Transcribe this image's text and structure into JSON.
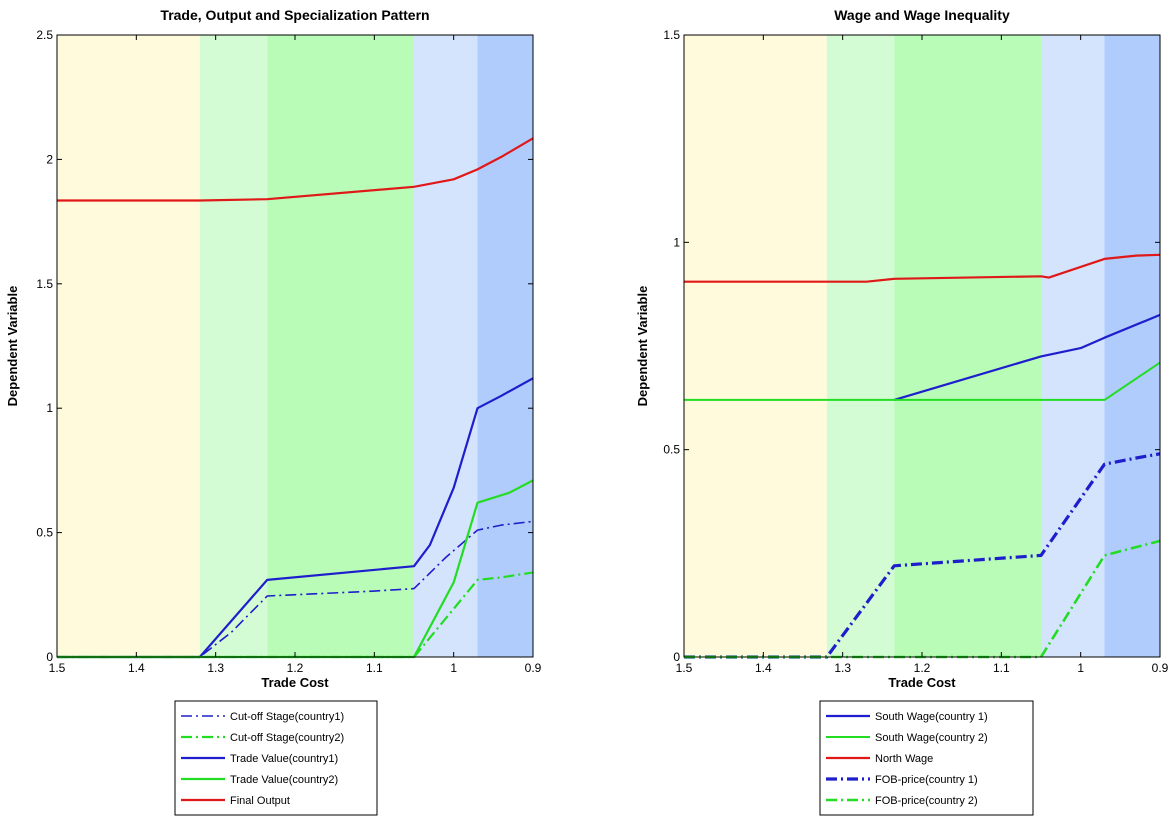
{
  "chart_data": [
    {
      "type": "line",
      "title": "Trade, Output and Specialization Pattern",
      "xlabel": "Trade Cost",
      "ylabel": "Dependent Variable",
      "xlim": [
        1.5,
        0.9
      ],
      "x_reversed": true,
      "ylim": [
        0,
        2.5
      ],
      "xticks": [
        1.5,
        1.4,
        1.3,
        1.2,
        1.1,
        1,
        0.9
      ],
      "xtick_labels": [
        "1.5",
        "1.4",
        "1.3",
        "1.2",
        "1.1",
        "1",
        "0.9"
      ],
      "yticks": [
        0,
        0.5,
        1,
        1.5,
        2,
        2.5
      ],
      "ytick_labels": [
        "0",
        "0.5",
        "1",
        "1.5",
        "2",
        "2.5"
      ],
      "grid": false,
      "legend_position": "below",
      "regions": [
        {
          "from": 1.5,
          "to": 1.32,
          "color": "#fffadc"
        },
        {
          "from": 1.32,
          "to": 1.235,
          "color": "#d4fcd4"
        },
        {
          "from": 1.235,
          "to": 1.05,
          "color": "#b8fcb8"
        },
        {
          "from": 1.05,
          "to": 0.97,
          "color": "#d4e4fc"
        },
        {
          "from": 0.97,
          "to": 0.9,
          "color": "#b0ccfc"
        }
      ],
      "series": [
        {
          "name": "Cut-off Stage(country1)",
          "color": "#1e1ecc",
          "style": "dashdot",
          "width": 1.6,
          "points": [
            [
              1.5,
              0
            ],
            [
              1.32,
              0
            ],
            [
              1.28,
              0.1
            ],
            [
              1.235,
              0.245
            ],
            [
              1.1,
              0.265
            ],
            [
              1.05,
              0.275
            ],
            [
              1.01,
              0.4
            ],
            [
              0.97,
              0.51
            ],
            [
              0.94,
              0.53
            ],
            [
              0.9,
              0.545
            ]
          ]
        },
        {
          "name": "Cut-off Stage(country2)",
          "color": "#22dd22",
          "style": "dashdot",
          "width": 2.2,
          "points": [
            [
              1.5,
              0
            ],
            [
              1.05,
              0
            ],
            [
              0.97,
              0.31
            ],
            [
              0.94,
              0.32
            ],
            [
              0.9,
              0.34
            ]
          ]
        },
        {
          "name": "Trade Value(country1)",
          "color": "#1e1ecc",
          "style": "solid",
          "width": 2.2,
          "points": [
            [
              1.5,
              0
            ],
            [
              1.32,
              0
            ],
            [
              1.235,
              0.31
            ],
            [
              1.05,
              0.365
            ],
            [
              1.03,
              0.45
            ],
            [
              1.0,
              0.68
            ],
            [
              0.97,
              1.0
            ],
            [
              0.94,
              1.05
            ],
            [
              0.9,
              1.12
            ]
          ]
        },
        {
          "name": "Trade Value(country2)",
          "color": "#22dd22",
          "style": "solid",
          "width": 2.2,
          "points": [
            [
              1.5,
              0
            ],
            [
              1.05,
              0
            ],
            [
              1.0,
              0.3
            ],
            [
              0.97,
              0.62
            ],
            [
              0.93,
              0.66
            ],
            [
              0.9,
              0.71
            ]
          ]
        },
        {
          "name": "Final Output",
          "color": "#e01818",
          "style": "solid",
          "width": 2.2,
          "points": [
            [
              1.5,
              1.835
            ],
            [
              1.32,
              1.835
            ],
            [
              1.235,
              1.84
            ],
            [
              1.05,
              1.89
            ],
            [
              1.0,
              1.92
            ],
            [
              0.97,
              1.96
            ],
            [
              0.94,
              2.01
            ],
            [
              0.9,
              2.085
            ]
          ]
        }
      ]
    },
    {
      "type": "line",
      "title": "Wage and Wage Inequality",
      "xlabel": "Trade Cost",
      "ylabel": "Dependent Variable",
      "xlim": [
        1.5,
        0.9
      ],
      "x_reversed": true,
      "ylim": [
        0,
        1.5
      ],
      "xticks": [
        1.5,
        1.4,
        1.3,
        1.2,
        1.1,
        1,
        0.9
      ],
      "xtick_labels": [
        "1.5",
        "1.4",
        "1.3",
        "1.2",
        "1.1",
        "1",
        "0.9"
      ],
      "yticks": [
        0,
        0.5,
        1,
        1.5
      ],
      "ytick_labels": [
        "0",
        "0.5",
        "1",
        "1.5"
      ],
      "grid": false,
      "legend_position": "below",
      "regions": [
        {
          "from": 1.5,
          "to": 1.32,
          "color": "#fffadc"
        },
        {
          "from": 1.32,
          "to": 1.235,
          "color": "#d4fcd4"
        },
        {
          "from": 1.235,
          "to": 1.05,
          "color": "#b8fcb8"
        },
        {
          "from": 1.05,
          "to": 0.97,
          "color": "#d4e4fc"
        },
        {
          "from": 0.97,
          "to": 0.9,
          "color": "#b0ccfc"
        }
      ],
      "series": [
        {
          "name": "South Wage(country 1)",
          "color": "#1e1ecc",
          "style": "solid",
          "width": 2.2,
          "points": [
            [
              1.235,
              0.62
            ],
            [
              1.05,
              0.725
            ],
            [
              1.0,
              0.745
            ],
            [
              0.97,
              0.77
            ],
            [
              0.9,
              0.825
            ]
          ]
        },
        {
          "name": "South Wage(country 2)",
          "color": "#22dd22",
          "style": "solid",
          "width": 2.0,
          "points": [
            [
              1.5,
              0.62
            ],
            [
              0.97,
              0.62
            ],
            [
              0.9,
              0.71
            ]
          ]
        },
        {
          "name": "North Wage",
          "color": "#e01818",
          "style": "solid",
          "width": 2.2,
          "points": [
            [
              1.5,
              0.905
            ],
            [
              1.27,
              0.905
            ],
            [
              1.235,
              0.912
            ],
            [
              1.05,
              0.918
            ],
            [
              1.04,
              0.915
            ],
            [
              0.97,
              0.96
            ],
            [
              0.93,
              0.968
            ],
            [
              0.9,
              0.97
            ]
          ]
        },
        {
          "name": "FOB-price(country 1)",
          "color": "#1e1ecc",
          "style": "dashdot",
          "width": 3.2,
          "points": [
            [
              1.5,
              0
            ],
            [
              1.32,
              0
            ],
            [
              1.235,
              0.22
            ],
            [
              1.05,
              0.245
            ],
            [
              1.03,
              0.3
            ],
            [
              0.97,
              0.465
            ],
            [
              0.93,
              0.48
            ],
            [
              0.9,
              0.49
            ]
          ]
        },
        {
          "name": "FOB-price(country 2)",
          "color": "#22dd22",
          "style": "dashdot",
          "width": 2.6,
          "points": [
            [
              1.5,
              0
            ],
            [
              1.05,
              0
            ],
            [
              0.97,
              0.245
            ],
            [
              0.93,
              0.265
            ],
            [
              0.9,
              0.28
            ]
          ]
        }
      ]
    }
  ]
}
